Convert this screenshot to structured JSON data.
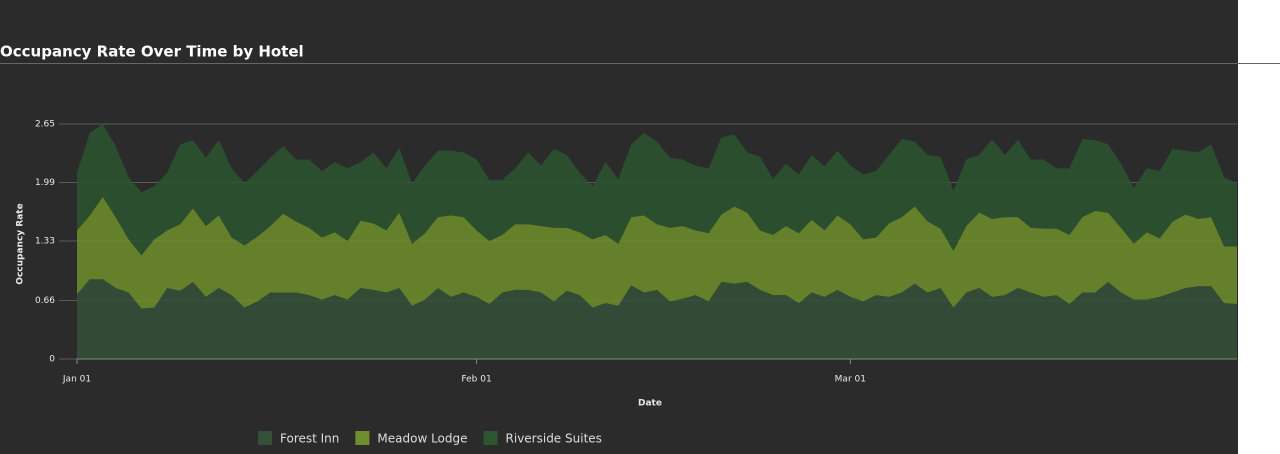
{
  "chart_data": {
    "type": "stacked_area",
    "title": "Occupancy Rate Over Time by Hotel",
    "x_label": "Date",
    "y_label": "Occupancy Rate",
    "categories": [
      "Jan 01",
      null,
      null,
      null,
      null,
      null,
      null,
      null,
      null,
      null,
      null,
      null,
      null,
      null,
      null,
      null,
      null,
      null,
      null,
      null,
      null,
      null,
      null,
      null,
      null,
      null,
      null,
      null,
      null,
      null,
      null,
      "Feb 01",
      null,
      null,
      null,
      null,
      null,
      null,
      null,
      null,
      null,
      null,
      null,
      null,
      null,
      null,
      null,
      null,
      null,
      null,
      null,
      null,
      null,
      null,
      null,
      null,
      null,
      null,
      null,
      null,
      "Mar 01",
      null,
      null,
      null,
      null,
      null,
      null,
      null,
      null,
      null,
      null,
      null,
      null,
      null,
      null,
      null,
      null,
      null,
      null,
      null,
      null,
      null,
      null,
      null,
      null,
      null,
      null,
      null,
      null,
      null,
      null
    ],
    "ylim": [
      0,
      2.65
    ],
    "yticks": [
      0,
      0.66,
      1.33,
      1.99,
      2.65
    ],
    "grid": true,
    "legend": "bottom",
    "series": [
      {
        "name": "Forest Inn",
        "color": "#35503a",
        "values": [
          0.73,
          0.9,
          0.9,
          0.8,
          0.75,
          0.57,
          0.58,
          0.8,
          0.77,
          0.87,
          0.7,
          0.8,
          0.72,
          0.58,
          0.65,
          0.75,
          0.75,
          0.75,
          0.72,
          0.67,
          0.72,
          0.67,
          0.8,
          0.78,
          0.75,
          0.8,
          0.6,
          0.67,
          0.8,
          0.7,
          0.75,
          0.7,
          0.62,
          0.75,
          0.78,
          0.78,
          0.75,
          0.65,
          0.77,
          0.72,
          0.58,
          0.63,
          0.6,
          0.83,
          0.75,
          0.78,
          0.65,
          0.68,
          0.72,
          0.65,
          0.87,
          0.85,
          0.87,
          0.78,
          0.72,
          0.72,
          0.63,
          0.75,
          0.7,
          0.78,
          0.7,
          0.65,
          0.72,
          0.7,
          0.75,
          0.85,
          0.75,
          0.8,
          0.58,
          0.75,
          0.8,
          0.7,
          0.72,
          0.8,
          0.75,
          0.7,
          0.72,
          0.62,
          0.75,
          0.75,
          0.87,
          0.75,
          0.67,
          0.67,
          0.7,
          0.75,
          0.8,
          0.82,
          0.82,
          0.63,
          0.62
        ]
      },
      {
        "name": "Meadow Lodge",
        "color": "#6e8f2c",
        "values": [
          0.72,
          0.72,
          0.93,
          0.8,
          0.6,
          0.6,
          0.77,
          0.65,
          0.75,
          0.83,
          0.8,
          0.82,
          0.65,
          0.7,
          0.73,
          0.75,
          0.89,
          0.8,
          0.76,
          0.7,
          0.71,
          0.66,
          0.76,
          0.75,
          0.7,
          0.85,
          0.7,
          0.75,
          0.8,
          0.92,
          0.85,
          0.75,
          0.71,
          0.65,
          0.74,
          0.74,
          0.75,
          0.83,
          0.71,
          0.71,
          0.77,
          0.77,
          0.7,
          0.77,
          0.87,
          0.74,
          0.83,
          0.82,
          0.73,
          0.77,
          0.76,
          0.87,
          0.78,
          0.67,
          0.68,
          0.78,
          0.79,
          0.82,
          0.75,
          0.84,
          0.82,
          0.7,
          0.65,
          0.83,
          0.85,
          0.87,
          0.8,
          0.67,
          0.64,
          0.75,
          0.85,
          0.88,
          0.88,
          0.8,
          0.73,
          0.77,
          0.75,
          0.78,
          0.85,
          0.92,
          0.78,
          0.73,
          0.63,
          0.76,
          0.66,
          0.8,
          0.83,
          0.76,
          0.78,
          0.64,
          0.65
        ]
      },
      {
        "name": "Riverside Suites",
        "color": "#2c5530",
        "values": [
          0.65,
          0.93,
          0.82,
          0.8,
          0.7,
          0.71,
          0.6,
          0.65,
          0.9,
          0.77,
          0.77,
          0.85,
          0.78,
          0.7,
          0.74,
          0.77,
          0.76,
          0.7,
          0.77,
          0.75,
          0.79,
          0.82,
          0.66,
          0.8,
          0.7,
          0.73,
          0.68,
          0.76,
          0.75,
          0.73,
          0.73,
          0.8,
          0.69,
          0.62,
          0.63,
          0.81,
          0.68,
          0.89,
          0.82,
          0.67,
          0.6,
          0.82,
          0.73,
          0.82,
          0.93,
          0.93,
          0.79,
          0.75,
          0.73,
          0.73,
          0.87,
          0.81,
          0.68,
          0.83,
          0.63,
          0.7,
          0.66,
          0.73,
          0.72,
          0.73,
          0.66,
          0.73,
          0.75,
          0.77,
          0.88,
          0.73,
          0.75,
          0.81,
          0.68,
          0.75,
          0.65,
          0.9,
          0.7,
          0.87,
          0.77,
          0.78,
          0.68,
          0.75,
          0.88,
          0.8,
          0.77,
          0.72,
          0.63,
          0.72,
          0.76,
          0.82,
          0.72,
          0.75,
          0.82,
          0.78,
          0.71
        ]
      }
    ]
  }
}
